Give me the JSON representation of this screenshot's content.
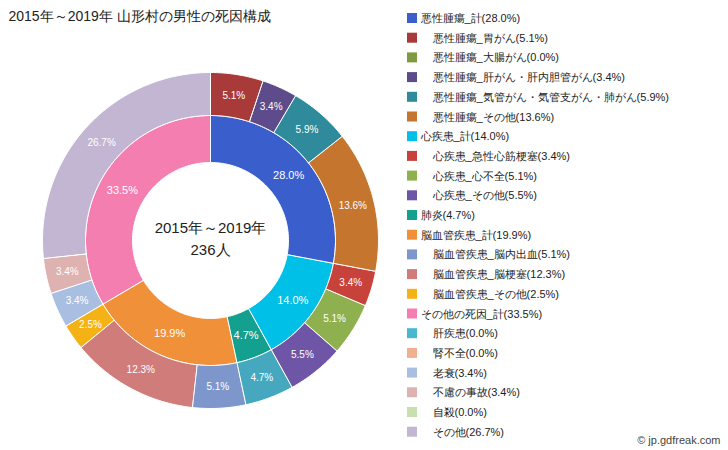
{
  "chart_data": {
    "type": "donut",
    "title": "2015年～2019年 山形村の男性の死因構成",
    "center_text": [
      "2015年～2019年",
      "236人"
    ],
    "source": "© jp.gdfreak.com",
    "data_labels": true,
    "inner": {
      "values": [
        28.0,
        14.0,
        4.7,
        19.9,
        33.5
      ],
      "value_labels": [
        "28.0%",
        "14.0%",
        "4.7%",
        "19.9%",
        "33.5%"
      ],
      "colors": [
        "#3a5fcd",
        "#00c0e8",
        "#13a08e",
        "#f0913a",
        "#f57eb0"
      ]
    },
    "outer": {
      "values": [
        5.1,
        0.0,
        3.4,
        5.9,
        13.6,
        3.4,
        5.1,
        5.5,
        4.7,
        5.1,
        12.3,
        2.5,
        0.0,
        0.0,
        3.4,
        3.4,
        0.0,
        26.7
      ],
      "value_labels": [
        "5.1%",
        null,
        "3.4%",
        "5.9%",
        "13.6%",
        "3.4%",
        "5.1%",
        "5.5%",
        "4.7%",
        "5.1%",
        "12.3%",
        "2.5%",
        null,
        null,
        "3.4%",
        "3.4%",
        null,
        "26.7%"
      ],
      "colors": [
        "#a83a3a",
        "#7f9a3f",
        "#5e4b8b",
        "#2f8b9c",
        "#c5752e",
        "#c8423c",
        "#8fb04f",
        "#6f55a5",
        "#46a8be",
        "#7d97cc",
        "#d07c7a",
        "#f4b216",
        "#47b8d0",
        "#f0b090",
        "#a9bfe2",
        "#deb2b1",
        "#c8e0b0",
        "#c2b6d3"
      ]
    },
    "legend_items": [
      {
        "label": "悪性腫瘍_計(28.0%)",
        "color": "#3a5fcd"
      },
      {
        "label": "悪性腫瘍_胃がん(5.1%)",
        "color": "#a83a3a"
      },
      {
        "label": "悪性腫瘍_大腸がん(0.0%)",
        "color": "#7f9a3f"
      },
      {
        "label": "悪性腫瘍_肝がん・肝内胆管がん(3.4%)",
        "color": "#5e4b8b"
      },
      {
        "label": "悪性腫瘍_気管がん・気管支がん・肺がん(5.9%)",
        "color": "#2f8b9c"
      },
      {
        "label": "悪性腫瘍_その他(13.6%)",
        "color": "#c5752e"
      },
      {
        "label": "心疾患_計(14.0%)",
        "color": "#00c0e8"
      },
      {
        "label": "心疾患_急性心筋梗塞(3.4%)",
        "color": "#c8423c"
      },
      {
        "label": "心疾患_心不全(5.1%)",
        "color": "#8fb04f"
      },
      {
        "label": "心疾患_その他(5.5%)",
        "color": "#6f55a5"
      },
      {
        "label": "肺炎(4.7%)",
        "color": "#13a08e"
      },
      {
        "label": "脳血管疾患_計(19.9%)",
        "color": "#f0913a"
      },
      {
        "label": "脳血管疾患_脳内出血(5.1%)",
        "color": "#7d97cc"
      },
      {
        "label": "脳血管疾患_脳梗塞(12.3%)",
        "color": "#d07c7a"
      },
      {
        "label": "脳血管疾患_その他(2.5%)",
        "color": "#f4b216"
      },
      {
        "label": "その他の死因_計(33.5%)",
        "color": "#f57eb0"
      },
      {
        "label": "肝疾患(0.0%)",
        "color": "#47b8d0"
      },
      {
        "label": "腎不全(0.0%)",
        "color": "#f0b090"
      },
      {
        "label": "老衰(3.4%)",
        "color": "#a9bfe2"
      },
      {
        "label": "不慮の事故(3.4%)",
        "color": "#deb2b1"
      },
      {
        "label": "自殺(0.0%)",
        "color": "#c8e0b0"
      },
      {
        "label": "その他(26.7%)",
        "color": "#c2b6d3"
      }
    ]
  }
}
